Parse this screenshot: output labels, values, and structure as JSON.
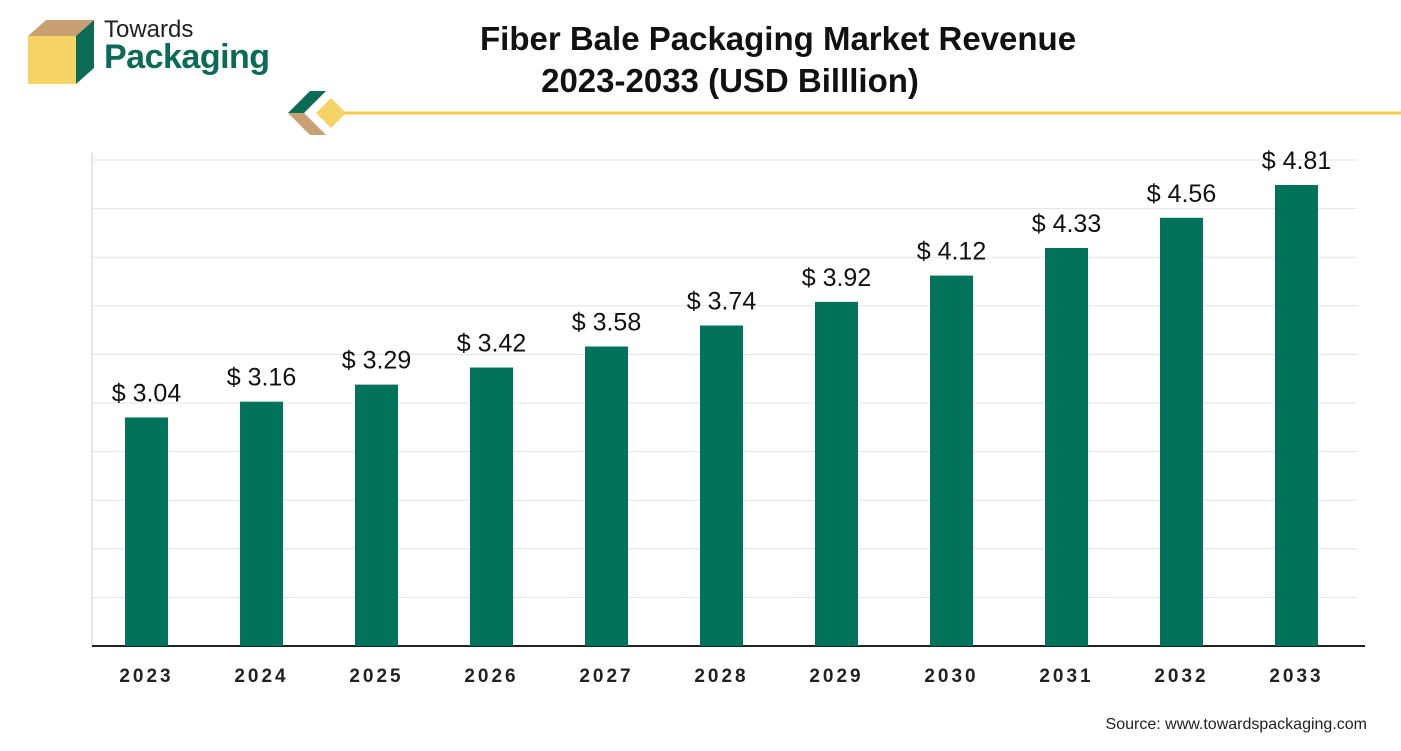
{
  "brand": {
    "name_line1": "Towards",
    "name_line2": "Packaging",
    "logo_icon": "box-logo-icon",
    "colors": {
      "green": "#0b6b55",
      "gold": "#f6d365",
      "tan": "#c8a074"
    }
  },
  "header": {
    "title_line1": "Fiber Bale Packaging Market Revenue",
    "title_line2": "2023-2033 (USD Billlion)"
  },
  "chart_data": {
    "type": "bar",
    "title": "Fiber Bale Packaging Market Revenue 2023-2033 (USD Billlion)",
    "categories": [
      "2023",
      "2024",
      "2025",
      "2026",
      "2027",
      "2028",
      "2029",
      "2030",
      "2031",
      "2032",
      "2033"
    ],
    "values": [
      3.04,
      3.16,
      3.29,
      3.42,
      3.58,
      3.74,
      3.92,
      4.12,
      4.33,
      4.56,
      4.81
    ],
    "value_labels": [
      "$ 3.04",
      "$ 3.16",
      "$ 3.29",
      "$ 3.42",
      "$ 3.58",
      "$ 3.74",
      "$ 3.92",
      "$ 4.12",
      "$ 4.33",
      "$ 4.56",
      "$ 4.81"
    ],
    "bar_color": "#00735a",
    "grid": true,
    "xlabel": "",
    "ylabel": "",
    "legend": "none",
    "ylim": [
      1.3,
      5.0
    ]
  },
  "footer": {
    "source": "Source: www.towardspackaging.com"
  }
}
